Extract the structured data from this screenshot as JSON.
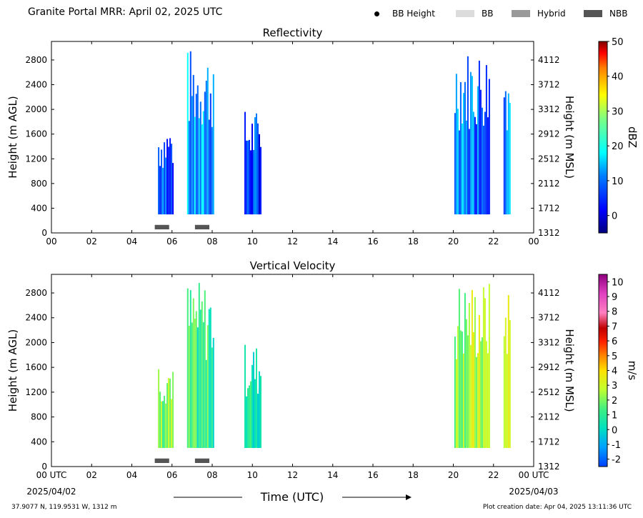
{
  "header": {
    "title": "Granite Portal MRR:  April 02, 2025 UTC"
  },
  "legend": [
    {
      "label": "BB Height",
      "icon": "dot",
      "color": "#000000"
    },
    {
      "label": "BB",
      "icon": "swatch",
      "color": "#dcdcdc"
    },
    {
      "label": "Hybrid",
      "icon": "swatch",
      "color": "#999999"
    },
    {
      "label": "NBB",
      "icon": "swatch",
      "color": "#555555"
    }
  ],
  "footer": {
    "location": "37.9077 N, 119.9531 W, 1312 m",
    "created": "Plot creation date: Apr 04, 2025 13:11:36 UTC"
  },
  "chart_data": [
    {
      "type": "heatmap",
      "title": "Reflectivity",
      "ylabel": "Height (m AGL)",
      "ylabel_right": "Height (m MSL)",
      "colorbar_label": "dBZ",
      "colorbar_ticks": [
        "50",
        "40",
        "30",
        "20",
        "10",
        "0"
      ],
      "colorbar_range": [
        -5,
        50
      ],
      "x_ticks": [
        "00",
        "02",
        "04",
        "06",
        "08",
        "10",
        "12",
        "14",
        "16",
        "18",
        "20",
        "22",
        "00"
      ],
      "y_ticks": [
        "0",
        "400",
        "800",
        "1200",
        "1600",
        "2000",
        "2400",
        "2800"
      ],
      "y_ticks_right": [
        "1312",
        "1712",
        "2112",
        "2512",
        "2912",
        "3312",
        "3712",
        "4112"
      ],
      "xlim": [
        0,
        24
      ],
      "ylim": [
        0,
        3100
      ],
      "precip_echoes": [
        {
          "start_hour": 5.3,
          "end_hour": 6.05,
          "top_m": 1800,
          "value_dbz": 8
        },
        {
          "start_hour": 6.75,
          "end_hour": 8.1,
          "top_m": 3000,
          "value_dbz": 12
        },
        {
          "start_hour": 9.6,
          "end_hour": 10.45,
          "top_m": 2000,
          "value_dbz": 6
        },
        {
          "start_hour": 20.05,
          "end_hour": 21.8,
          "top_m": 3000,
          "value_dbz": 10
        },
        {
          "start_hour": 22.5,
          "end_hour": 22.85,
          "top_m": 3000,
          "value_dbz": 11
        }
      ],
      "bright_band_class": [
        {
          "start_hour": 5.0,
          "end_hour": 6.0,
          "class": "NBB"
        },
        {
          "start_hour": 7.0,
          "end_hour": 8.0,
          "class": "NBB"
        }
      ]
    },
    {
      "type": "heatmap",
      "title": "Vertical Velocity",
      "ylabel": "Height (m AGL)",
      "ylabel_right": "Height (m MSL)",
      "xlabel": "Time (UTC)",
      "colorbar_label": "m/s",
      "colorbar_ticks": [
        "10",
        "9",
        "8",
        "7",
        "6",
        "5",
        "4",
        "3",
        "2",
        "1",
        "0",
        "-1",
        "-2"
      ],
      "colorbar_range": [
        -2.5,
        10.5
      ],
      "x_ticks": [
        "00 UTC",
        "02",
        "04",
        "06",
        "08",
        "10",
        "12",
        "14",
        "16",
        "18",
        "20",
        "22",
        "00 UTC"
      ],
      "x_start_date": "2025/04/02",
      "x_end_date": "2025/04/03",
      "y_ticks": [
        "0",
        "400",
        "800",
        "1200",
        "1600",
        "2000",
        "2400",
        "2800"
      ],
      "y_ticks_right": [
        "1312",
        "1712",
        "2112",
        "2512",
        "2912",
        "3312",
        "3712",
        "4112"
      ],
      "xlim": [
        0,
        24
      ],
      "ylim": [
        0,
        3100
      ],
      "precip_echoes": [
        {
          "start_hour": 5.3,
          "end_hour": 6.05,
          "top_m": 1800,
          "value_ms": 2
        },
        {
          "start_hour": 6.75,
          "end_hour": 8.1,
          "top_m": 3000,
          "value_ms": 1
        },
        {
          "start_hour": 9.6,
          "end_hour": 10.45,
          "top_m": 2000,
          "value_ms": 0.5
        },
        {
          "start_hour": 20.05,
          "end_hour": 21.8,
          "top_m": 3000,
          "value_ms": 2.5
        },
        {
          "start_hour": 22.5,
          "end_hour": 22.85,
          "top_m": 3000,
          "value_ms": 3
        }
      ],
      "bright_band_class": [
        {
          "start_hour": 5.0,
          "end_hour": 6.0,
          "class": "NBB"
        },
        {
          "start_hour": 7.0,
          "end_hour": 8.0,
          "class": "NBB"
        }
      ]
    }
  ]
}
